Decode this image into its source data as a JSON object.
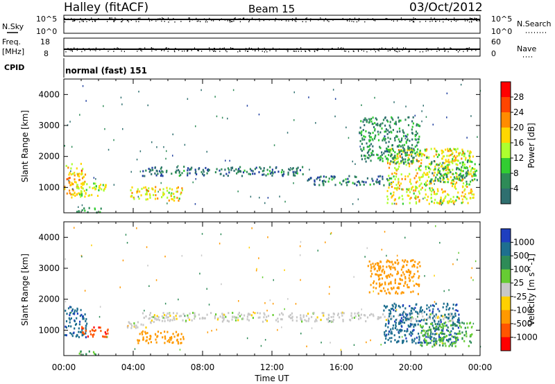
{
  "header": {
    "station": "Halley (fitACF)",
    "beam": "Beam 15",
    "date": "03/Oct/2012"
  },
  "strips": {
    "nsky_label": "N.Sky",
    "nsearch_label": "N.Search",
    "count_ticks": [
      "10^5",
      "10^0"
    ],
    "freq_label_line1": "Freq.",
    "freq_label_line2": "[MHz]",
    "freq_ticks": [
      "18",
      "8"
    ],
    "nave_label": "Nave",
    "nave_ticks": [
      "60",
      "0"
    ],
    "cpid_label": "CPID",
    "cpid_value": "normal (fast) 151"
  },
  "xaxis": {
    "label": "Time UT",
    "ticks": [
      "00:00",
      "04:00",
      "08:00",
      "12:00",
      "16:00",
      "20:00",
      "00:00"
    ],
    "range_hours": [
      0,
      24
    ]
  },
  "yaxis": {
    "label": "Slant Range [km]",
    "ticks": [
      "1000",
      "2000",
      "3000",
      "4000"
    ],
    "range_km": [
      180,
      4500
    ]
  },
  "power_colorbar": {
    "label": "Power [dB]",
    "ticks": [
      "28",
      "24",
      "20",
      "16",
      "12",
      "8",
      "4"
    ],
    "colors": [
      "#ff0000",
      "#ff4500",
      "#ff8c00",
      "#ffd700",
      "#adff2f",
      "#32cd32",
      "#2e8b57",
      "#2f6f6f",
      "#1f3f9f",
      "#0000ff"
    ]
  },
  "velocity_colorbar": {
    "label": "Velocity [m s^-1]",
    "ticks": [
      "1000",
      "500",
      "100",
      "25",
      "-25",
      "-100",
      "-500",
      "-1000"
    ],
    "colors": [
      "#1f3fbf",
      "#1e6f8f",
      "#2e8b57",
      "#66cc33",
      "#c8c8c8",
      "#ffd000",
      "#ff9900",
      "#ff5500",
      "#ff0000"
    ]
  },
  "chart_data": [
    {
      "type": "heatmap",
      "name": "Power",
      "x_unit": "hours UT",
      "y_unit": "km",
      "scale_label": "Power [dB]",
      "regions": [
        {
          "x0": 0.0,
          "x1": 1.2,
          "y0": 700,
          "y1": 1800,
          "value": 22
        },
        {
          "x0": 0.5,
          "x1": 2.4,
          "y0": 750,
          "y1": 1200,
          "value": 18
        },
        {
          "x0": 0.7,
          "x1": 2.2,
          "y0": 220,
          "y1": 380,
          "value": 14
        },
        {
          "x0": 3.8,
          "x1": 6.8,
          "y0": 600,
          "y1": 1050,
          "value": 20
        },
        {
          "x0": 4.5,
          "x1": 14.0,
          "y0": 1400,
          "y1": 1700,
          "value": 8
        },
        {
          "x0": 14.0,
          "x1": 19.0,
          "y0": 1100,
          "y1": 1400,
          "value": 8
        },
        {
          "x0": 18.6,
          "x1": 23.6,
          "y0": 500,
          "y1": 2300,
          "value": 20
        },
        {
          "x0": 17.0,
          "x1": 20.5,
          "y0": 1800,
          "y1": 3300,
          "value": 10
        },
        {
          "x0": 21.0,
          "x1": 23.8,
          "y0": 1200,
          "y1": 1900,
          "value": 12
        }
      ]
    },
    {
      "type": "heatmap",
      "name": "Velocity",
      "x_unit": "hours UT",
      "y_unit": "km",
      "scale_label": "Velocity [m s^-1]",
      "regions": [
        {
          "x0": 0.0,
          "x1": 1.3,
          "y0": 800,
          "y1": 1800,
          "value": 600
        },
        {
          "x0": 1.0,
          "x1": 2.6,
          "y0": 800,
          "y1": 1150,
          "value": -600
        },
        {
          "x0": 0.8,
          "x1": 1.8,
          "y0": 220,
          "y1": 380,
          "value": 60
        },
        {
          "x0": 3.6,
          "x1": 5.0,
          "y0": 1050,
          "y1": 1300,
          "value": 0
        },
        {
          "x0": 4.2,
          "x1": 7.0,
          "y0": 600,
          "y1": 1000,
          "value": -200
        },
        {
          "x0": 4.5,
          "x1": 22.5,
          "y0": 1300,
          "y1": 1600,
          "value": 0
        },
        {
          "x0": 18.4,
          "x1": 22.8,
          "y0": 600,
          "y1": 1900,
          "value": 600
        },
        {
          "x0": 20.5,
          "x1": 23.5,
          "y0": 500,
          "y1": 1300,
          "value": 60
        },
        {
          "x0": 17.5,
          "x1": 20.5,
          "y0": 2200,
          "y1": 3300,
          "value": -200
        }
      ]
    }
  ]
}
